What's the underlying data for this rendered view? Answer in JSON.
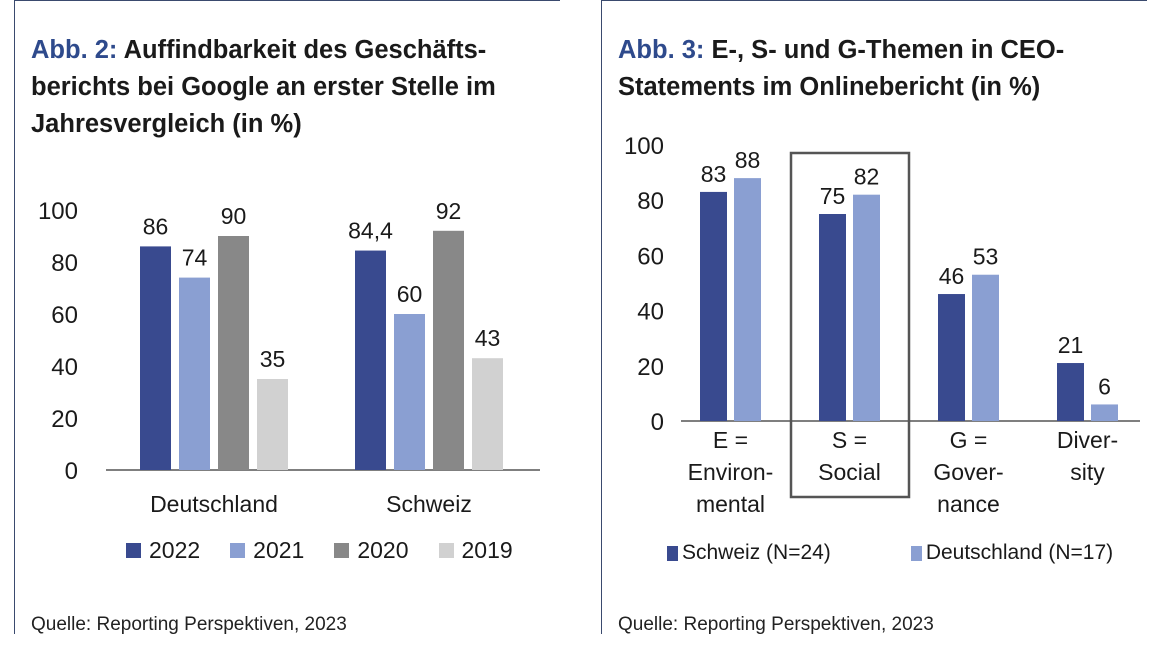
{
  "colors": {
    "c2022": "#394a8f",
    "c2021": "#8a9fd2",
    "c2020": "#888888",
    "c2019": "#d1d1d1",
    "schweiz": "#394a8f",
    "deutschland": "#8a9fd2",
    "axis": "#555555",
    "accent": "#2e4a8c"
  },
  "left": {
    "title_prefix": "Abb. 2:",
    "title_text": "Auffindbarkeit des Geschäfts-berichts bei Google an erster Stelle im Jahresvergleich (in %)",
    "source": "Quelle: Reporting Perspektiven, 2023",
    "legend": [
      "2022",
      "2021",
      "2020",
      "2019"
    ]
  },
  "right": {
    "title_prefix": "Abb. 3:",
    "title_text": "E-, S- und G-Themen in CEO-Statements im Onlinebericht (in %)",
    "source": "Quelle: Reporting Perspektiven, 2023",
    "legend": [
      "Schweiz (N=24)",
      "Deutschland (N=17)"
    ]
  },
  "chart_data": [
    {
      "type": "bar",
      "categories": [
        "Deutschland",
        "Schweiz"
      ],
      "series": [
        {
          "name": "2022",
          "values": [
            86,
            84.4
          ],
          "labels": [
            "86",
            "84,4"
          ]
        },
        {
          "name": "2021",
          "values": [
            74,
            60
          ],
          "labels": [
            "74",
            "60"
          ]
        },
        {
          "name": "2020",
          "values": [
            90,
            92
          ],
          "labels": [
            "90",
            "92"
          ]
        },
        {
          "name": "2019",
          "values": [
            35,
            43
          ],
          "labels": [
            "35",
            "43"
          ]
        }
      ],
      "ylim": [
        0,
        100
      ],
      "yticks": [
        "0",
        "20",
        "40",
        "60",
        "80",
        "100"
      ],
      "grid": false,
      "legend_position": "bottom"
    },
    {
      "type": "bar",
      "categories": [
        [
          "E =",
          "Environ-",
          "mental"
        ],
        [
          "S =",
          "Social"
        ],
        [
          "G =",
          "Gover-",
          "nance"
        ],
        [
          "Diver-",
          "sity"
        ]
      ],
      "series": [
        {
          "name": "Schweiz (N=24)",
          "values": [
            83,
            75,
            46,
            21
          ],
          "labels": [
            "83",
            "75",
            "46",
            "21"
          ]
        },
        {
          "name": "Deutschland (N=17)",
          "values": [
            88,
            82,
            53,
            6
          ],
          "labels": [
            "88",
            "82",
            "53",
            "6"
          ]
        }
      ],
      "ylim": [
        0,
        100
      ],
      "yticks": [
        "0",
        "20",
        "40",
        "60",
        "80",
        "100"
      ],
      "highlight_category": 1,
      "grid": false,
      "legend_position": "bottom"
    }
  ]
}
